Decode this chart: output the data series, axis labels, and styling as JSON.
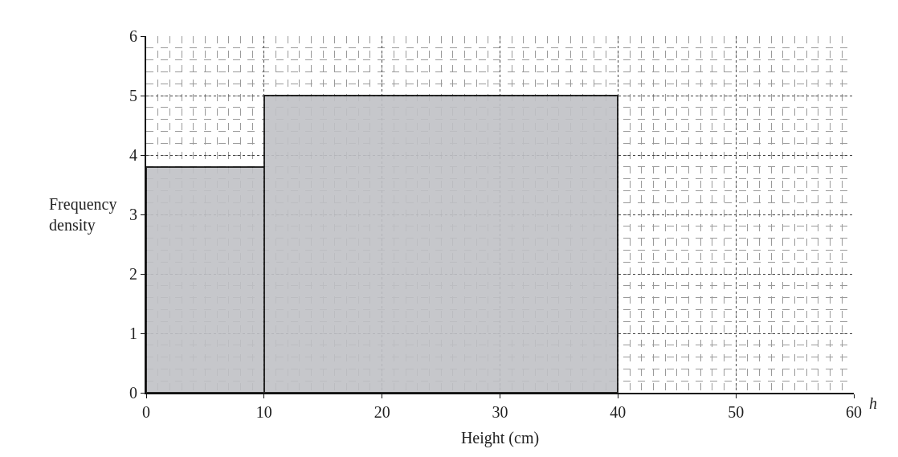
{
  "chart_data": {
    "type": "histogram",
    "xlabel": "Height (cm)",
    "ylabel": "Frequency density",
    "bins": [
      0,
      10,
      40
    ],
    "values": [
      3.8,
      5
    ],
    "color": "#c0c1c6",
    "xlim": [
      0,
      60
    ],
    "ylim": [
      0,
      6
    ],
    "xticks": [
      0,
      10,
      20,
      30,
      40,
      50,
      60
    ],
    "yticks": [
      0,
      1,
      2,
      3,
      4,
      5,
      6
    ],
    "grid": true,
    "annotations": [
      "h"
    ]
  }
}
